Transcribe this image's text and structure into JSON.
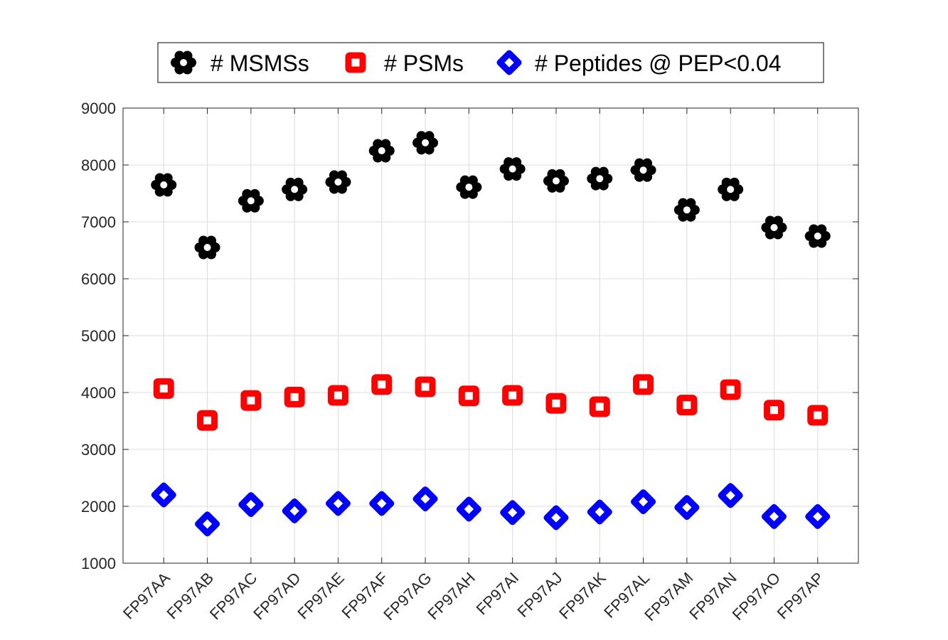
{
  "chart_data": {
    "type": "scatter",
    "categories": [
      "FP97AA",
      "FP97AB",
      "FP97AC",
      "FP97AD",
      "FP97AE",
      "FP97AF",
      "FP97AG",
      "FP97AH",
      "FP97AI",
      "FP97AJ",
      "FP97AK",
      "FP97AL",
      "FP97AM",
      "FP97AN",
      "FP97AO",
      "FP97AP"
    ],
    "series": [
      {
        "name": "# MSMSs",
        "color": "#000000",
        "marker": "flower",
        "values": [
          7650,
          6550,
          7370,
          7570,
          7700,
          8250,
          8390,
          7610,
          7930,
          7720,
          7760,
          7910,
          7210,
          7570,
          6900,
          6750
        ]
      },
      {
        "name": "# PSMs",
        "color": "#ff0000",
        "marker": "square",
        "values": [
          4070,
          3510,
          3860,
          3920,
          3950,
          4140,
          4100,
          3940,
          3950,
          3810,
          3750,
          4140,
          3780,
          4050,
          3690,
          3600
        ]
      },
      {
        "name": "# Peptides @ PEP<0.04",
        "color": "#0000ff",
        "marker": "diamond",
        "values": [
          2200,
          1690,
          2030,
          1920,
          2050,
          2050,
          2130,
          1950,
          1890,
          1800,
          1900,
          2080,
          1980,
          2190,
          1820,
          1820
        ]
      }
    ],
    "ylim": [
      1000,
      9000
    ],
    "yticks": [
      "1000",
      "2000",
      "3000",
      "4000",
      "5000",
      "6000",
      "7000",
      "8000",
      "9000"
    ],
    "grid": true,
    "legend_position": "top-center-outside",
    "title": "",
    "xlabel": "",
    "ylabel": ""
  }
}
